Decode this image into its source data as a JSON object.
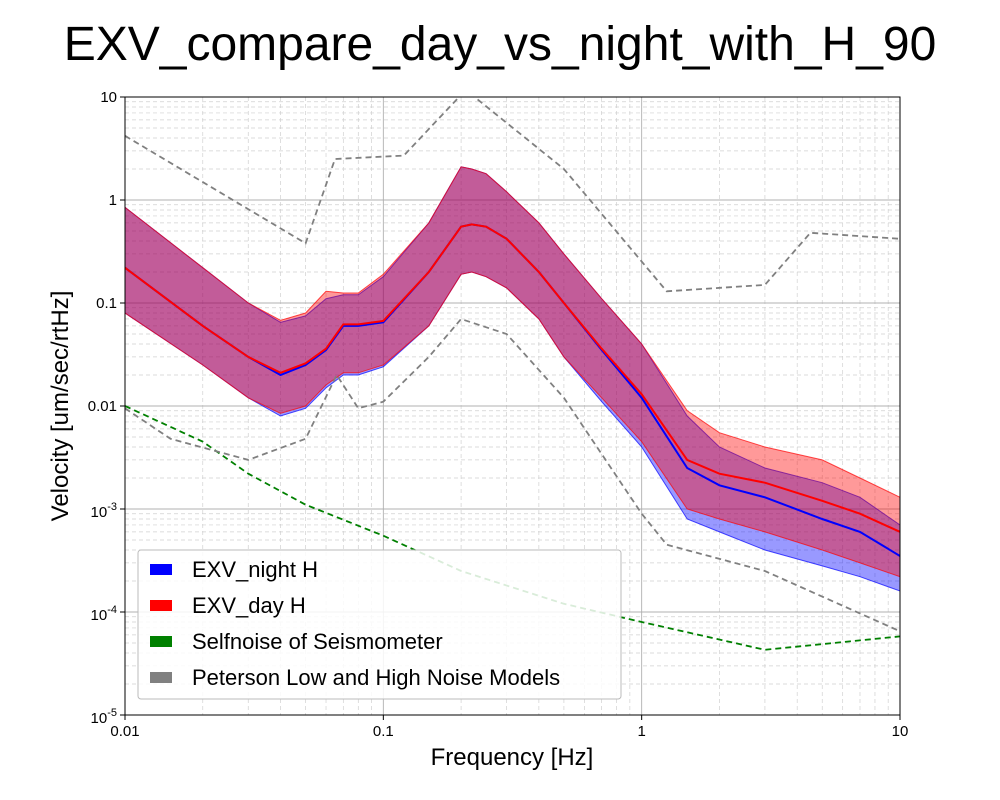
{
  "chart_data": {
    "type": "line",
    "title": "EXV_compare_day_vs_night_with_H_90",
    "xlabel": "Frequency [Hz]",
    "ylabel": "Velocity [um/sec/rtHz]",
    "xscale": "log",
    "yscale": "log",
    "xlim": [
      0.01,
      10
    ],
    "ylim": [
      1e-05,
      10
    ],
    "grid": true,
    "legend_position": "lower-left",
    "x_ticks": [
      {
        "value": 0.01,
        "label": "0.01"
      },
      {
        "value": 0.1,
        "label": "0.1"
      },
      {
        "value": 1,
        "label": "1"
      },
      {
        "value": 10,
        "label": "10"
      }
    ],
    "y_ticks": [
      {
        "value": 10,
        "label": "10"
      },
      {
        "value": 1,
        "label": "1"
      },
      {
        "value": 0.1,
        "label": "0.1"
      },
      {
        "value": 0.01,
        "label": "0.01"
      },
      {
        "value": 0.001,
        "base": "10",
        "exp": "-3"
      },
      {
        "value": 0.0001,
        "base": "10",
        "exp": "-4"
      },
      {
        "value": 1e-05,
        "base": "10",
        "exp": "-5"
      }
    ],
    "series": [
      {
        "name": "EXV_night H",
        "color": "#0000ff",
        "x": [
          0.01,
          0.02,
          0.03,
          0.04,
          0.05,
          0.06,
          0.07,
          0.08,
          0.1,
          0.15,
          0.2,
          0.22,
          0.25,
          0.3,
          0.4,
          0.5,
          0.7,
          1.0,
          1.5,
          2,
          3,
          5,
          7,
          10
        ],
        "median": [
          0.22,
          0.06,
          0.03,
          0.02,
          0.025,
          0.035,
          0.06,
          0.06,
          0.065,
          0.2,
          0.55,
          0.58,
          0.55,
          0.42,
          0.2,
          0.1,
          0.035,
          0.012,
          0.0025,
          0.0017,
          0.0013,
          0.0008,
          0.0006,
          0.00035
        ],
        "lower": [
          0.08,
          0.025,
          0.012,
          0.008,
          0.0095,
          0.015,
          0.02,
          0.02,
          0.024,
          0.06,
          0.19,
          0.2,
          0.18,
          0.14,
          0.07,
          0.03,
          0.011,
          0.004,
          0.0008,
          0.0006,
          0.0004,
          0.00028,
          0.00022,
          0.00016
        ],
        "upper": [
          0.85,
          0.22,
          0.1,
          0.065,
          0.075,
          0.11,
          0.12,
          0.12,
          0.18,
          0.6,
          2.1,
          2.0,
          1.8,
          1.2,
          0.6,
          0.3,
          0.11,
          0.04,
          0.008,
          0.004,
          0.0025,
          0.0018,
          0.0013,
          0.0007
        ]
      },
      {
        "name": "EXV_day H",
        "color": "#ff0000",
        "x": [
          0.01,
          0.02,
          0.03,
          0.04,
          0.05,
          0.06,
          0.07,
          0.08,
          0.1,
          0.15,
          0.2,
          0.22,
          0.25,
          0.3,
          0.4,
          0.5,
          0.7,
          1.0,
          1.5,
          2,
          3,
          5,
          7,
          10
        ],
        "median": [
          0.22,
          0.06,
          0.03,
          0.021,
          0.026,
          0.036,
          0.062,
          0.062,
          0.067,
          0.2,
          0.55,
          0.58,
          0.55,
          0.42,
          0.2,
          0.1,
          0.036,
          0.013,
          0.003,
          0.0022,
          0.0018,
          0.0012,
          0.0009,
          0.0006
        ],
        "lower": [
          0.08,
          0.025,
          0.012,
          0.0085,
          0.01,
          0.016,
          0.021,
          0.021,
          0.025,
          0.06,
          0.19,
          0.2,
          0.18,
          0.14,
          0.07,
          0.03,
          0.012,
          0.0045,
          0.001,
          0.0008,
          0.0006,
          0.0004,
          0.0003,
          0.00022
        ],
        "upper": [
          0.85,
          0.22,
          0.1,
          0.068,
          0.08,
          0.13,
          0.125,
          0.125,
          0.19,
          0.6,
          2.1,
          2.0,
          1.8,
          1.2,
          0.6,
          0.3,
          0.11,
          0.04,
          0.009,
          0.0055,
          0.004,
          0.003,
          0.002,
          0.0013
        ]
      },
      {
        "name": "Selfnoise of Seismometer",
        "color": "#008000",
        "style": "dashed",
        "x": [
          0.01,
          0.02,
          0.03,
          0.05,
          0.1,
          0.2,
          0.5,
          1.0,
          3.0,
          10
        ],
        "y": [
          0.01,
          0.0045,
          0.0022,
          0.0011,
          0.00055,
          0.00025,
          0.00012,
          8e-05,
          4.3e-05,
          5.8e-05
        ]
      },
      {
        "name": "Peterson Low and High Noise Models",
        "color": "#808080",
        "style": "dashed",
        "lines": [
          {
            "x": [
              0.01,
              0.05,
              0.065,
              0.12,
              0.2,
              0.22,
              0.5,
              1.25,
              3.0,
              4.5,
              10
            ],
            "y": [
              4.2,
              0.38,
              2.5,
              2.7,
              10.5,
              10.5,
              2.0,
              0.13,
              0.15,
              0.48,
              0.42
            ]
          },
          {
            "x": [
              0.01,
              0.015,
              0.03,
              0.05,
              0.066,
              0.08,
              0.1,
              0.15,
              0.2,
              0.3,
              0.5,
              1.0,
              1.25,
              3.0,
              10
            ],
            "y": [
              0.0095,
              0.0048,
              0.003,
              0.0048,
              0.02,
              0.0095,
              0.011,
              0.03,
              0.07,
              0.05,
              0.012,
              0.0009,
              0.00045,
              0.00025,
              6.5e-05
            ]
          }
        ]
      }
    ]
  }
}
